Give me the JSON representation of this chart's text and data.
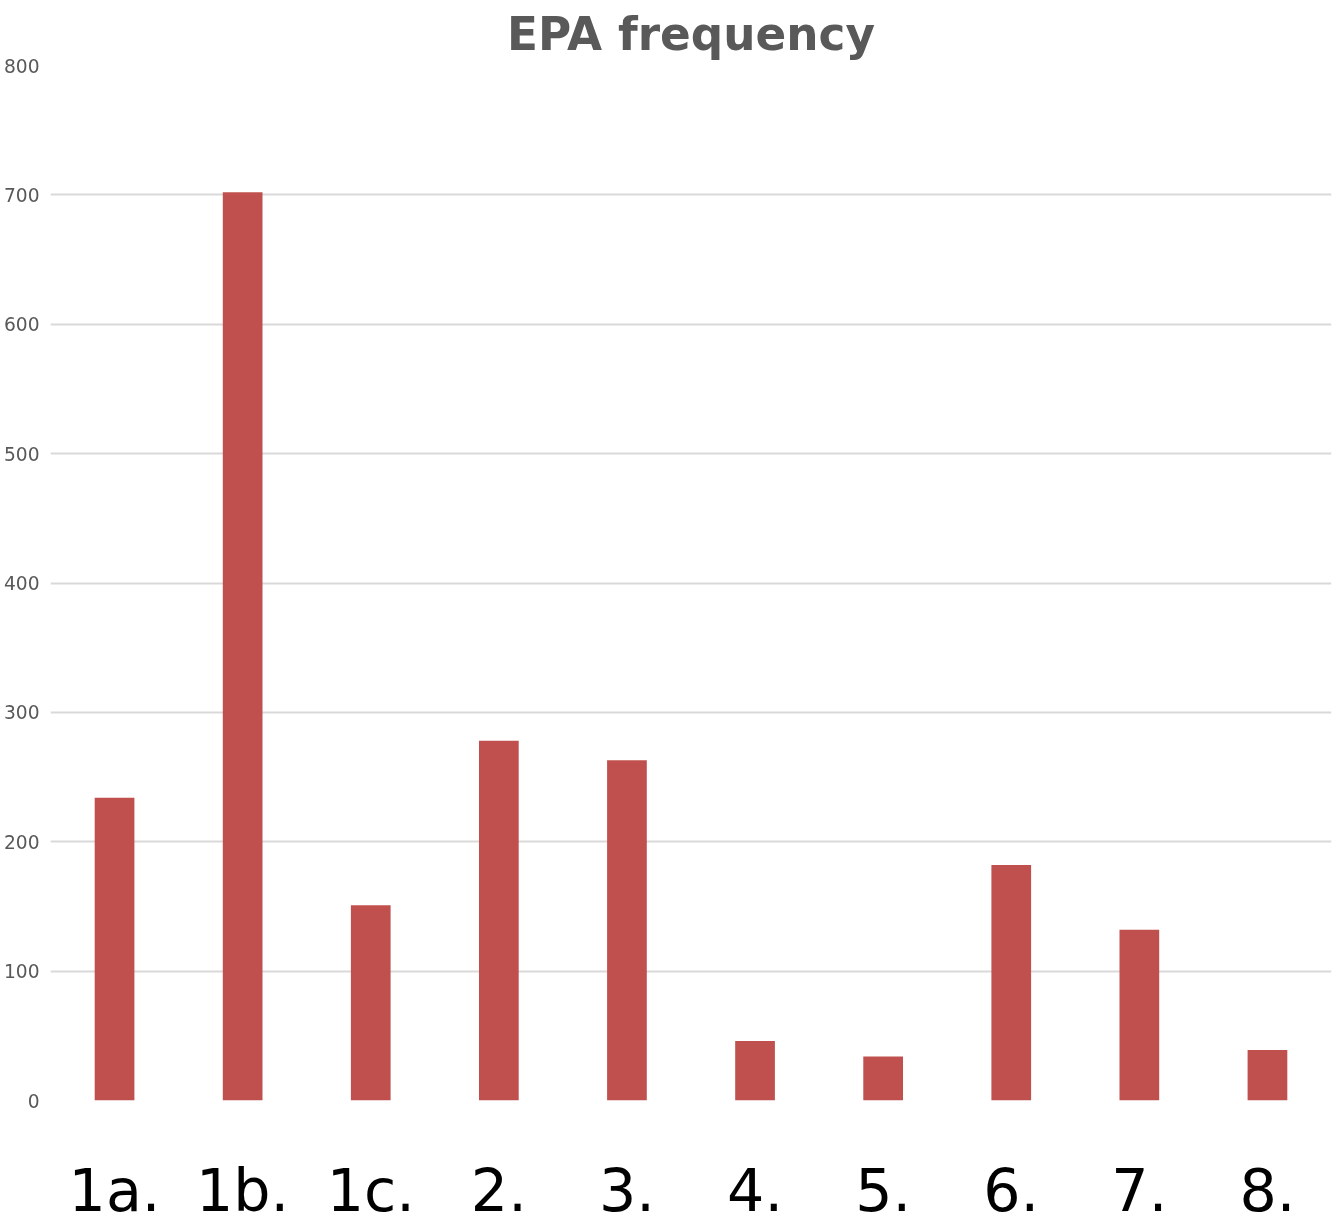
{
  "chart_data": {
    "type": "bar",
    "title": "EPA frequency",
    "categories": [
      "1a.",
      "1b.",
      "1c.",
      "2.",
      "3.",
      "4.",
      "5.",
      "6.",
      "7.",
      "8."
    ],
    "values": [
      234,
      702,
      151,
      278,
      263,
      46,
      34,
      182,
      132,
      39
    ],
    "color": "#c0504d",
    "ylim": [
      0,
      800
    ],
    "yticks": [
      0,
      100,
      200,
      300,
      400,
      500,
      600,
      700,
      800
    ],
    "grid": "y"
  }
}
